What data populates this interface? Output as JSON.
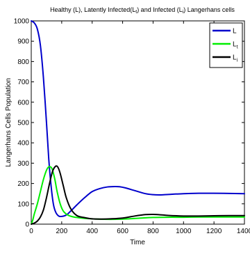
{
  "chart_data": {
    "type": "line",
    "title": "Healthy (L), Latently Infected(L",
    "title_parts": {
      "p1": "Healthy (L), Latently Infected(L",
      "sub1": "t",
      "p2": ") and  Infected (L",
      "sub2": "i",
      "p3": ") Langerhans cells"
    },
    "xlabel": "Time",
    "ylabel": "Langerhans Cells Population",
    "xlim": [
      0,
      1400
    ],
    "ylim": [
      0,
      1000
    ],
    "x_ticks": [
      0,
      200,
      400,
      600,
      800,
      1000,
      1200,
      1400
    ],
    "y_ticks": [
      0,
      100,
      200,
      300,
      400,
      500,
      600,
      700,
      800,
      900,
      1000
    ],
    "grid": false,
    "legend_position": "top-right",
    "legend": [
      {
        "base": "L",
        "sub": ""
      },
      {
        "base": "L",
        "sub": "t"
      },
      {
        "base": "L",
        "sub": "i"
      }
    ],
    "series": [
      {
        "name": "L",
        "color": "#0000cc",
        "x": [
          0,
          20,
          40,
          60,
          80,
          100,
          115,
          130,
          145,
          160,
          180,
          200,
          230,
          260,
          300,
          350,
          400,
          450,
          500,
          550,
          580,
          620,
          680,
          750,
          800,
          850,
          900,
          1000,
          1100,
          1200,
          1300,
          1400
        ],
        "y": [
          1000,
          990,
          960,
          880,
          720,
          500,
          320,
          190,
          100,
          60,
          40,
          38,
          45,
          65,
          95,
          130,
          160,
          175,
          183,
          185,
          184,
          178,
          165,
          150,
          145,
          144,
          146,
          150,
          152,
          152,
          151,
          150
        ]
      },
      {
        "name": "L_t",
        "color": "#00ee00",
        "x": [
          0,
          10,
          20,
          40,
          60,
          80,
          100,
          115,
          130,
          140,
          155,
          170,
          190,
          210,
          240,
          280,
          330,
          400,
          480,
          560,
          640,
          720,
          800,
          900,
          1000,
          1100,
          1200,
          1300,
          1400
        ],
        "y": [
          0,
          20,
          50,
          100,
          160,
          220,
          265,
          282,
          280,
          265,
          220,
          160,
          100,
          65,
          45,
          35,
          30,
          26,
          24,
          24,
          26,
          30,
          33,
          34,
          34,
          35,
          35,
          35,
          35
        ]
      },
      {
        "name": "L_i",
        "color": "#000000",
        "x": [
          0,
          20,
          40,
          60,
          80,
          100,
          120,
          140,
          160,
          175,
          190,
          210,
          230,
          260,
          300,
          350,
          400,
          460,
          520,
          600,
          680,
          750,
          800,
          850,
          900,
          1000,
          1100,
          1200,
          1300,
          1400
        ],
        "y": [
          0,
          5,
          15,
          35,
          70,
          130,
          200,
          260,
          285,
          280,
          250,
          190,
          130,
          75,
          42,
          32,
          26,
          25,
          26,
          30,
          40,
          47,
          48,
          46,
          43,
          40,
          40,
          41,
          42,
          42
        ]
      }
    ]
  }
}
